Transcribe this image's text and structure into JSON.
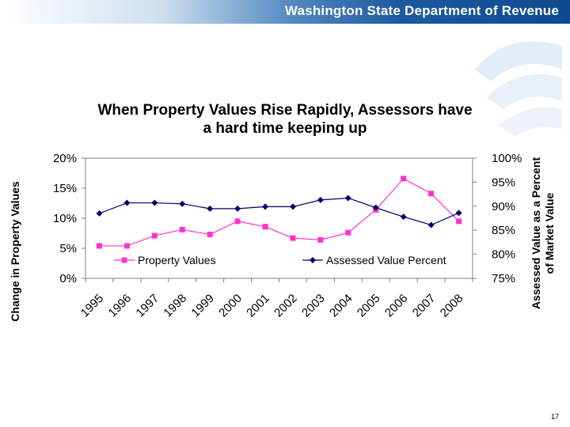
{
  "header": {
    "org_name": "Washington State Department of Revenue"
  },
  "footer": {
    "page_number": "17"
  },
  "chart_data": {
    "type": "line",
    "title": "When Property Values Rise Rapidly, Assessors have a hard time keeping up",
    "title_lines": [
      "When Property Values Rise Rapidly, Assessors have",
      "a hard time keeping up"
    ],
    "categories": [
      "1995",
      "1996",
      "1997",
      "1998",
      "1999",
      "2000",
      "2001",
      "2002",
      "2003",
      "2004",
      "2005",
      "2006",
      "2007",
      "2008"
    ],
    "y_left": {
      "label": "Change in Property Values",
      "range": [
        0,
        20
      ],
      "ticks": [
        0,
        5,
        10,
        15,
        20
      ],
      "tick_labels": [
        "0%",
        "5%",
        "10%",
        "15%",
        "20%"
      ]
    },
    "y_right": {
      "label_lines": [
        "Assessed Value as a Percent",
        "of Market Value"
      ],
      "range": [
        75,
        100
      ],
      "ticks": [
        75,
        80,
        85,
        90,
        95,
        100
      ],
      "tick_labels": [
        "75%",
        "80%",
        "85%",
        "90%",
        "95%",
        "100%"
      ]
    },
    "series": [
      {
        "name": "Property Values",
        "axis": "left",
        "color": "#ff33cc",
        "marker": "square",
        "values": [
          5.4,
          5.4,
          7.1,
          8.1,
          7.3,
          9.5,
          8.6,
          6.7,
          6.4,
          7.6,
          11.4,
          16.6,
          14.1,
          9.5
        ]
      },
      {
        "name": "Assessed Value Percent",
        "axis": "right",
        "color": "#000066",
        "marker": "diamond",
        "values": [
          88.5,
          90.7,
          90.7,
          90.5,
          89.5,
          89.5,
          89.9,
          89.9,
          91.3,
          91.7,
          89.7,
          87.8,
          86.1,
          88.6
        ]
      }
    ],
    "legend_position": "inside-bottom",
    "grid": false
  }
}
